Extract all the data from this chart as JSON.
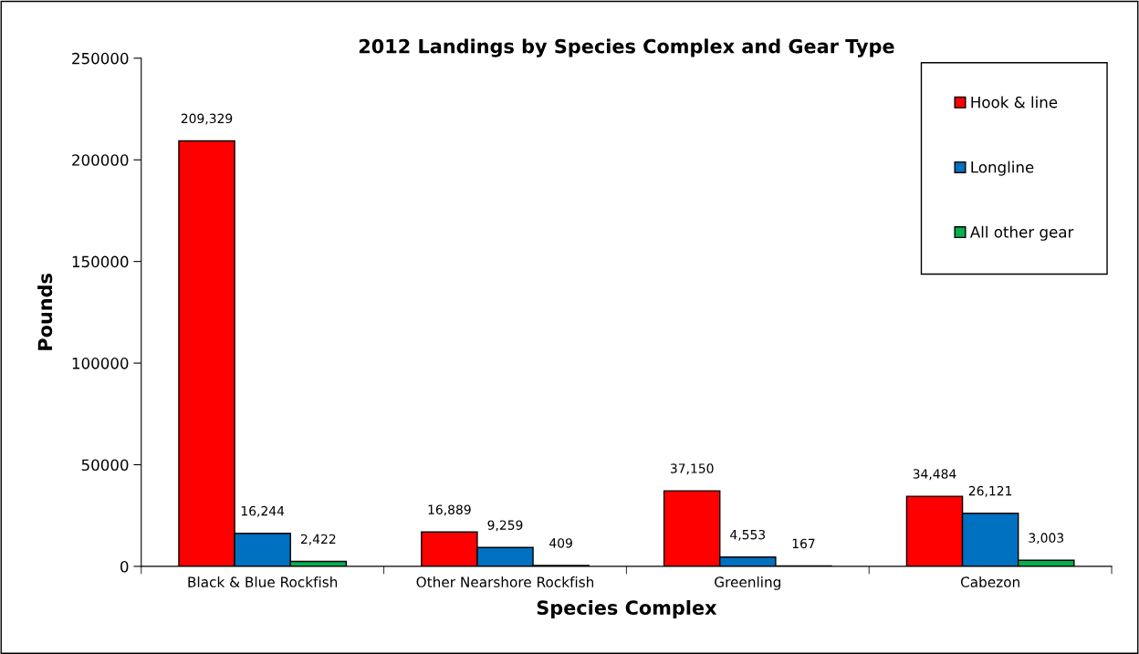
{
  "chart_data": {
    "type": "bar",
    "title": "2012 Landings by Species Complex and Gear Type",
    "xlabel": "Species Complex",
    "ylabel": "Pounds",
    "categories": [
      "Black & Blue Rockfish",
      "Other Nearshore Rockfish",
      "Greenling",
      "Cabezon"
    ],
    "series": [
      {
        "name": "Hook & line",
        "color": "#ff0000",
        "values": [
          209329,
          16889,
          37150,
          34484
        ],
        "value_labels": [
          "209,329",
          "16,889",
          "37,150",
          "34,484"
        ]
      },
      {
        "name": "Longline",
        "color": "#0070c0",
        "values": [
          16244,
          9259,
          4553,
          26121
        ],
        "value_labels": [
          "16,244",
          "9,259",
          "4,553",
          "26,121"
        ]
      },
      {
        "name": "All other gear",
        "color": "#00b050",
        "values": [
          2422,
          409,
          167,
          3003
        ],
        "value_labels": [
          "2,422",
          "409",
          "167",
          "3,003"
        ]
      }
    ],
    "ylim": [
      0,
      250000
    ],
    "yticks": [
      0,
      50000,
      100000,
      150000,
      200000,
      250000
    ],
    "grid": false,
    "legend": "top right"
  }
}
